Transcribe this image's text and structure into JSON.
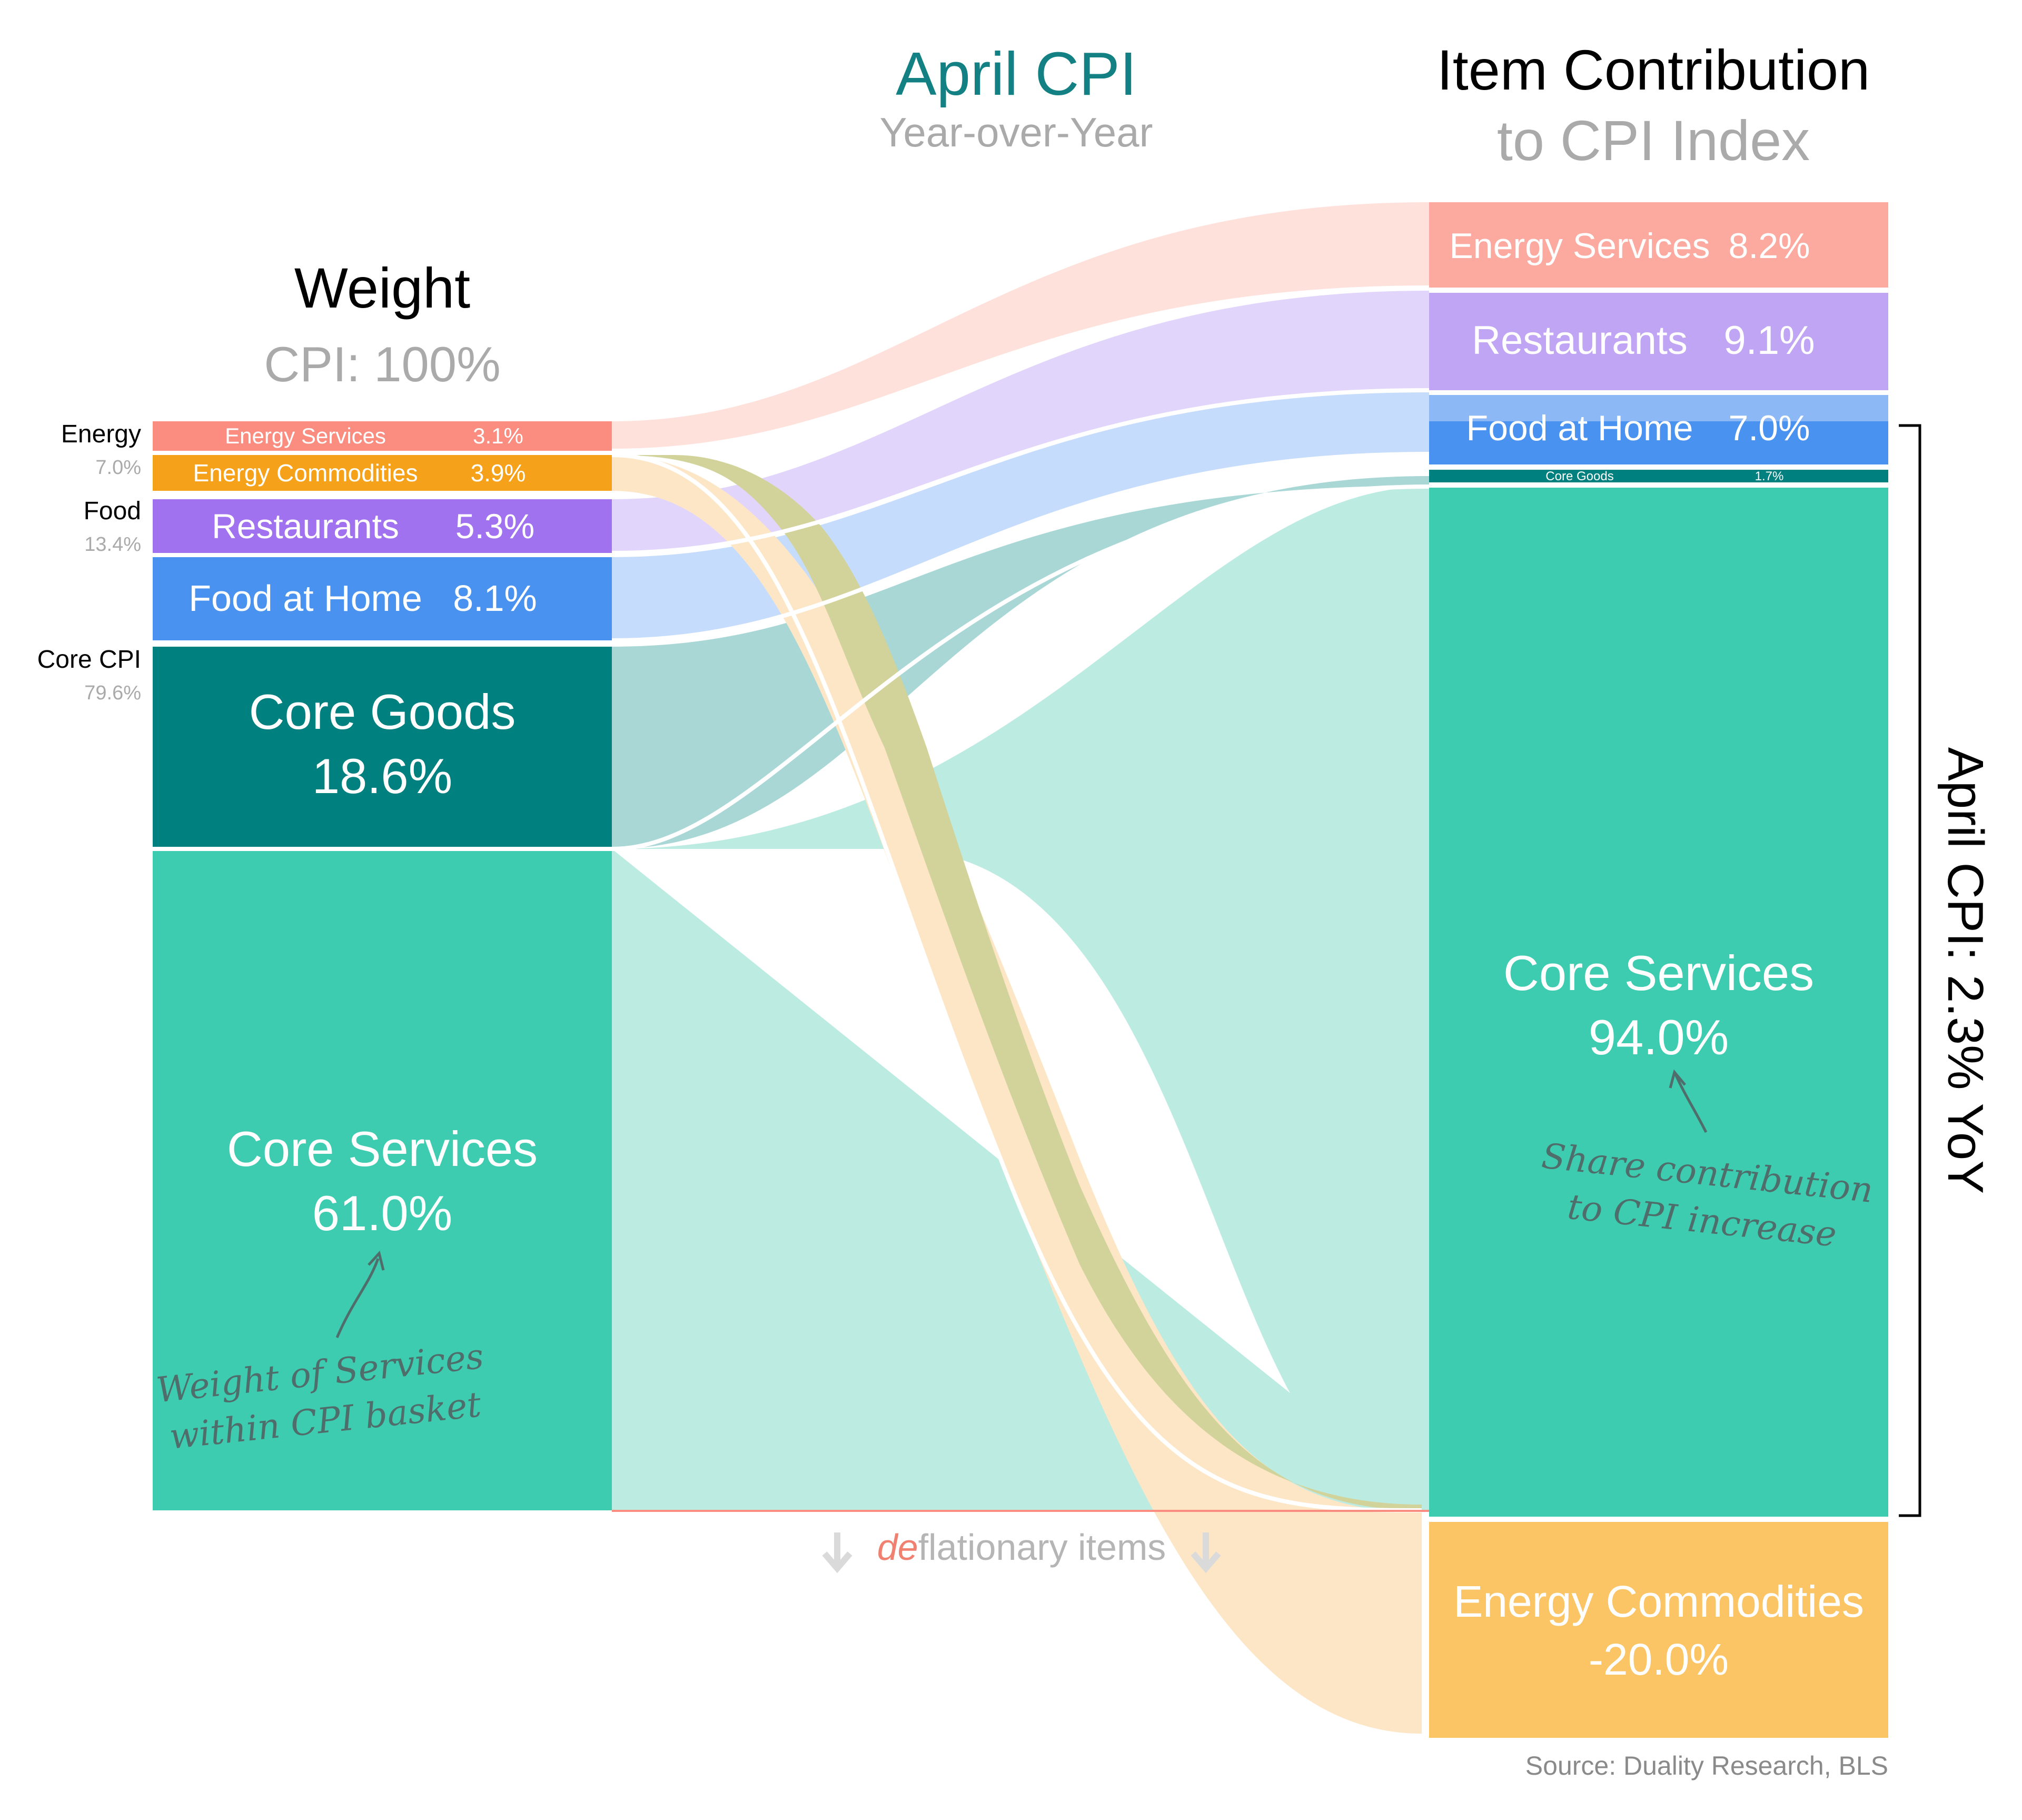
{
  "header": {
    "center_title": "April CPI",
    "center_subtitle": "Year-over-Year",
    "right_title": "Item Contribution",
    "right_subtitle": "to CPI Index"
  },
  "left_header": {
    "title": "Weight",
    "subtitle": "CPI: 100%"
  },
  "groups": [
    {
      "name": "Energy",
      "pct": "7.0%"
    },
    {
      "name": "Food",
      "pct": "13.4%"
    },
    {
      "name": "Core CPI",
      "pct": "79.6%"
    }
  ],
  "deflationary": {
    "prefix": "de",
    "rest": "flationary items"
  },
  "bracket_label": "April CPI: 2.3% YoY",
  "annotations": {
    "left_line1": "Weight of Services",
    "left_line2": "within CPI basket",
    "right_line1": "Share contribution",
    "right_line2": "to CPI increase"
  },
  "source": "Source: Duality Research, BLS",
  "colors": {
    "energy_services": "#FA8C80",
    "energy_commodities": "#F5A21A",
    "restaurants": "#A172F0",
    "food_at_home": "#4A92F0",
    "core_goods": "#00807F",
    "core_services": "#3ECCB0",
    "title_teal": "#138083"
  },
  "chart_data": {
    "type": "sankey",
    "left_label": "Weight",
    "right_label": "Item Contribution",
    "items": [
      {
        "name": "Energy Services",
        "group": "Energy",
        "weight": "3.1%",
        "contribution": "8.2%"
      },
      {
        "name": "Energy Commodities",
        "group": "Energy",
        "weight": "3.9%",
        "contribution": "-20.0%"
      },
      {
        "name": "Restaurants",
        "group": "Food",
        "weight": "5.3%",
        "contribution": "9.1%"
      },
      {
        "name": "Food at Home",
        "group": "Food",
        "weight": "8.1%",
        "contribution": "7.0%"
      },
      {
        "name": "Core Goods",
        "group": "Core CPI",
        "weight": "18.6%",
        "contribution": "1.7%"
      },
      {
        "name": "Core Services",
        "group": "Core CPI",
        "weight": "61.0%",
        "contribution": "94.0%"
      }
    ]
  }
}
